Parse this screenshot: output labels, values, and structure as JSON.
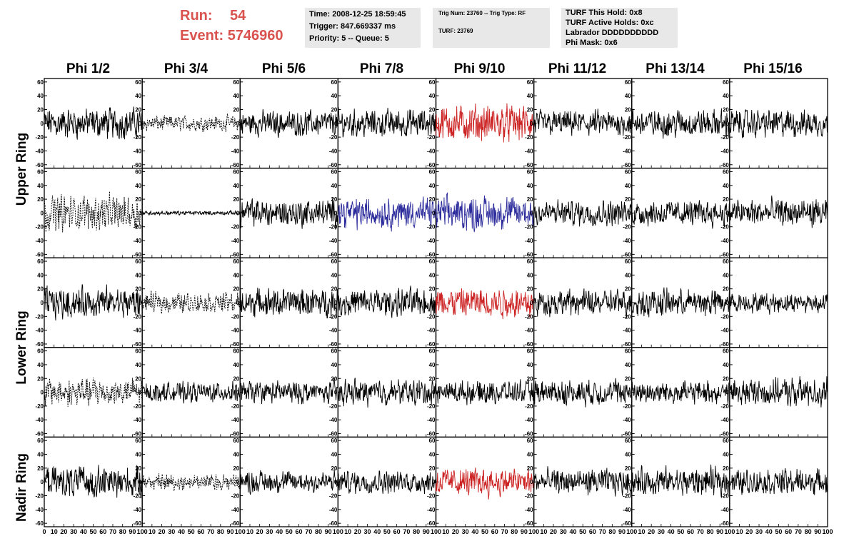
{
  "header": {
    "run_label": "Run:",
    "run_value": "54",
    "event_label": "Event:",
    "event_value": "5746960",
    "run_color": "#d9534f"
  },
  "info_box_1": {
    "time": "Time: 2008-12-25 18:59:45",
    "trigger": "Trigger: 847.669337 ms",
    "priority": "Priority: 5 -- Queue: 5"
  },
  "info_box_2": {
    "trig": "Trig Num: 23760 -- Trig Type: RF",
    "turf": "TURF: 23769"
  },
  "info_box_3": {
    "this_hold": "TURF This Hold: 0x8",
    "active_holds": "TURF Active Holds: 0xc",
    "labrador": "Labrador DDDDDDDDDD",
    "phi_mask": "Phi Mask: 0x6"
  },
  "columns": [
    "Phi 1/2",
    "Phi 3/4",
    "Phi 5/6",
    "Phi 7/8",
    "Phi 9/10",
    "Phi 11/12",
    "Phi 13/14",
    "Phi 15/16"
  ],
  "ring_labels": [
    "Upper Ring",
    "Lower Ring",
    "Nadir Ring"
  ],
  "chart_data": {
    "type": "line",
    "rows": 5,
    "cols": 8,
    "xlim": [
      0,
      100
    ],
    "ylim": [
      -65,
      65
    ],
    "x_ticks": [
      0,
      10,
      20,
      30,
      40,
      50,
      60,
      70,
      80,
      90,
      100
    ],
    "x_tick_labels": [
      "0",
      "10",
      "20",
      "30",
      "40",
      "50",
      "60",
      "70",
      "80",
      "90",
      "100"
    ],
    "y_ticks": [
      -60,
      -40,
      -20,
      0,
      20,
      40,
      60
    ],
    "y_tick_labels": [
      "-60",
      "-40",
      "-20",
      "0",
      "20",
      "40",
      "60"
    ],
    "colors": {
      "black": "#000000",
      "red": "#cc2222",
      "blue": "#2b2b9c"
    },
    "panels": [
      [
        {
          "color": "black",
          "style": "solid",
          "amp": 22
        },
        {
          "color": "black",
          "style": "dashed",
          "amp": 11
        },
        {
          "color": "black",
          "style": "solid",
          "amp": 18
        },
        {
          "color": "black",
          "style": "solid",
          "amp": 20
        },
        {
          "color": "red",
          "style": "solid",
          "amp": 26
        },
        {
          "color": "black",
          "style": "solid",
          "amp": 18
        },
        {
          "color": "black",
          "style": "solid",
          "amp": 20
        },
        {
          "color": "black",
          "style": "solid",
          "amp": 20
        }
      ],
      [
        {
          "color": "black",
          "style": "dashed",
          "amp": 25
        },
        {
          "color": "black",
          "style": "solid",
          "amp": 3
        },
        {
          "color": "black",
          "style": "solid",
          "amp": 20
        },
        {
          "color": "blue",
          "style": "solid",
          "amp": 22
        },
        {
          "color": "blue",
          "style": "solid",
          "amp": 24
        },
        {
          "color": "black",
          "style": "solid",
          "amp": 18
        },
        {
          "color": "black",
          "style": "solid",
          "amp": 18
        },
        {
          "color": "black",
          "style": "solid",
          "amp": 20
        }
      ],
      [
        {
          "color": "black",
          "style": "solid",
          "amp": 22
        },
        {
          "color": "black",
          "style": "dashed",
          "amp": 14
        },
        {
          "color": "black",
          "style": "solid",
          "amp": 20
        },
        {
          "color": "black",
          "style": "solid",
          "amp": 20
        },
        {
          "color": "red",
          "style": "solid",
          "amp": 22
        },
        {
          "color": "black",
          "style": "solid",
          "amp": 18
        },
        {
          "color": "black",
          "style": "solid",
          "amp": 20
        },
        {
          "color": "black",
          "style": "solid",
          "amp": 14
        }
      ],
      [
        {
          "color": "black",
          "style": "dashed",
          "amp": 20
        },
        {
          "color": "black",
          "style": "solid",
          "amp": 14
        },
        {
          "color": "black",
          "style": "solid",
          "amp": 16
        },
        {
          "color": "black",
          "style": "solid",
          "amp": 18
        },
        {
          "color": "black",
          "style": "solid",
          "amp": 16
        },
        {
          "color": "black",
          "style": "solid",
          "amp": 18
        },
        {
          "color": "black",
          "style": "solid",
          "amp": 16
        },
        {
          "color": "black",
          "style": "solid",
          "amp": 20
        }
      ],
      [
        {
          "color": "black",
          "style": "solid",
          "amp": 22
        },
        {
          "color": "black",
          "style": "dashed",
          "amp": 12
        },
        {
          "color": "black",
          "style": "solid",
          "amp": 16
        },
        {
          "color": "black",
          "style": "solid",
          "amp": 16
        },
        {
          "color": "red",
          "style": "solid",
          "amp": 20
        },
        {
          "color": "black",
          "style": "solid",
          "amp": 18
        },
        {
          "color": "black",
          "style": "solid",
          "amp": 20
        },
        {
          "color": "black",
          "style": "solid",
          "amp": 18
        }
      ]
    ]
  }
}
